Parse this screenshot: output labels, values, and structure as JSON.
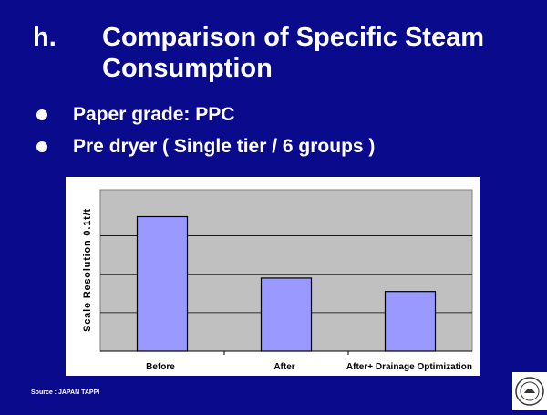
{
  "slide": {
    "marker": "h.",
    "title": "Comparison of Specific Steam Consumption",
    "bullets": [
      "Paper grade: PPC",
      "Pre dryer ( Single tier / 6 groups )"
    ],
    "source": "Source : JAPAN TAPPI",
    "logo": "seal-logo-icon"
  },
  "colors": {
    "background": "#0a0a8c",
    "bar_fill": "#9999ff",
    "plot_background": "#c0c0c0",
    "text": "#ffffff"
  },
  "chart_data": {
    "type": "bar",
    "categories": [
      "Before",
      "After",
      "After+ Drainage Optimization"
    ],
    "values": [
      3.5,
      1.9,
      1.55
    ],
    "ylabel": "Scale Resolution 0.1t/t",
    "ylim": [
      0,
      4.2
    ],
    "ygrid": [
      1,
      2,
      3
    ],
    "grid": true,
    "legend": "none",
    "bar_color": "#9999ff"
  }
}
